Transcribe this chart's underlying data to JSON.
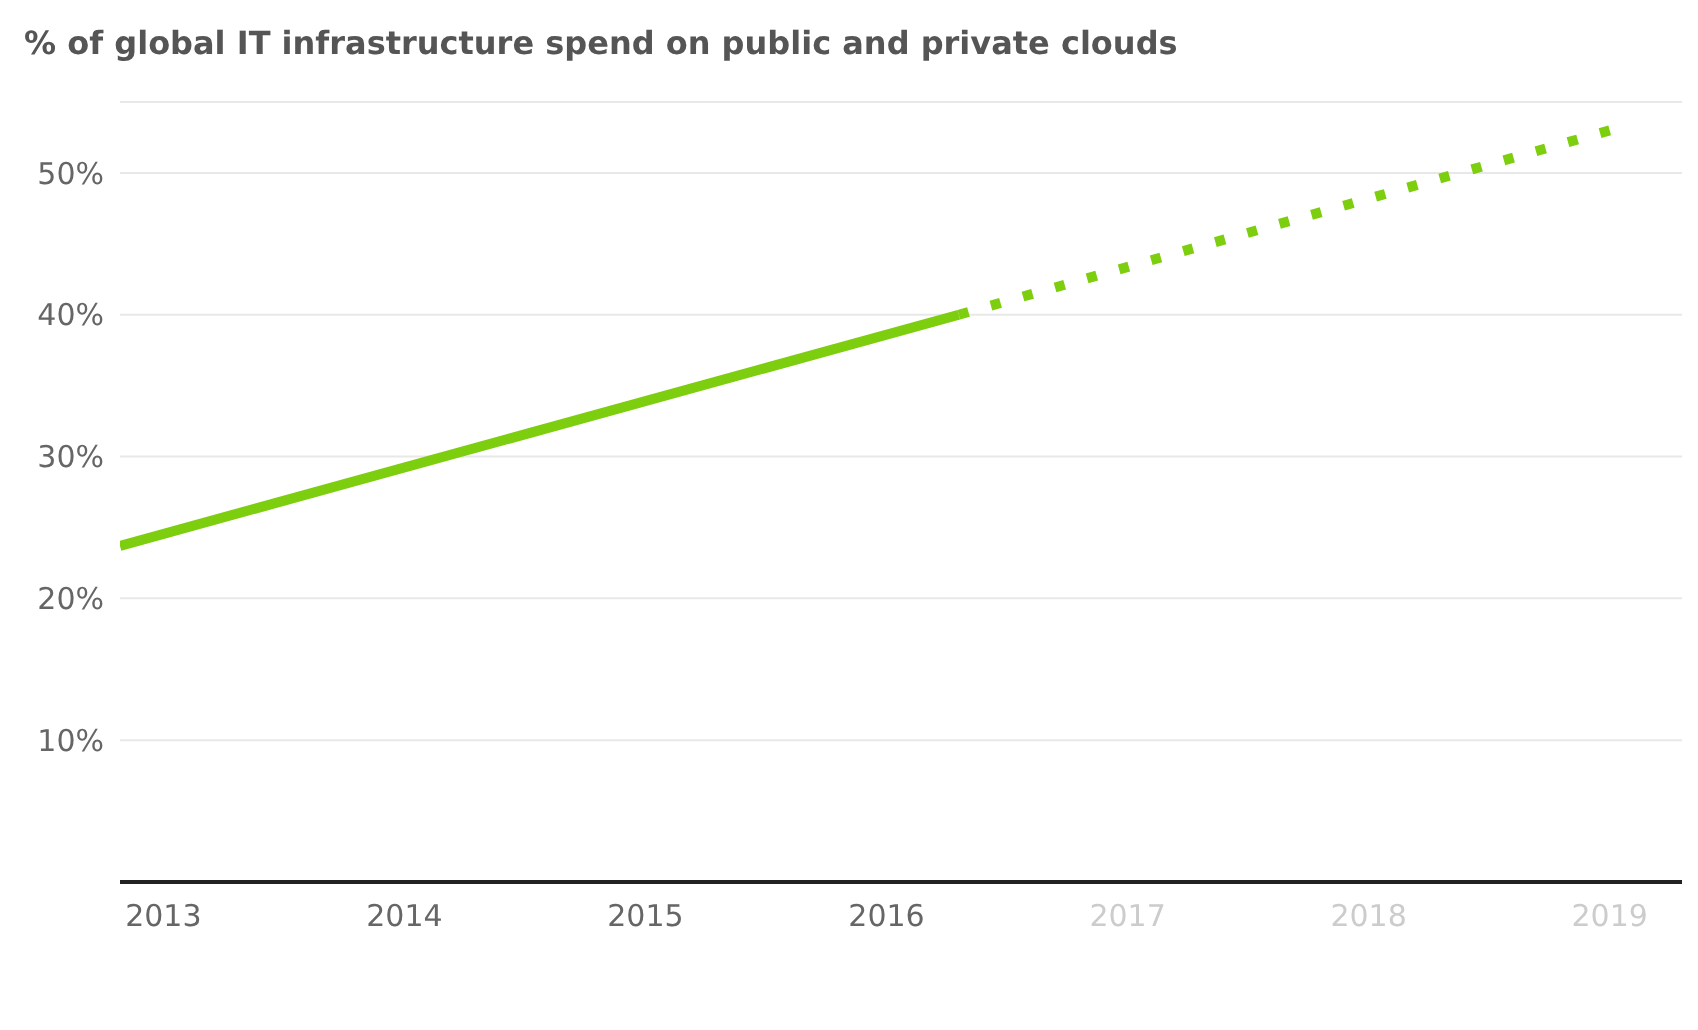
{
  "chart_data": {
    "type": "line",
    "title": "% of global IT infrastructure spend on public and private clouds",
    "series": [
      {
        "color": "#7dce0e",
        "line_style": "solid",
        "x": [
          2012.82,
          2016.3
        ],
        "values": [
          23.7,
          40
        ]
      },
      {
        "color": "#7dce0e",
        "line_style": "dotted",
        "x": [
          2016.3,
          2019
        ],
        "values": [
          40,
          53
        ]
      }
    ],
    "xlim": [
      2012.82,
      2019.3
    ],
    "xticks": [
      2013,
      2014,
      2015,
      2016,
      2017,
      2018,
      2019
    ],
    "ylim": [
      0,
      55
    ],
    "yticks": [
      {
        "value": 10,
        "label": "10%"
      },
      {
        "value": 20,
        "label": "20%"
      },
      {
        "value": 30,
        "label": "30%"
      },
      {
        "value": 40,
        "label": "40%"
      },
      {
        "value": 50,
        "label": "50%"
      }
    ],
    "grid": "y",
    "marker": "none"
  }
}
